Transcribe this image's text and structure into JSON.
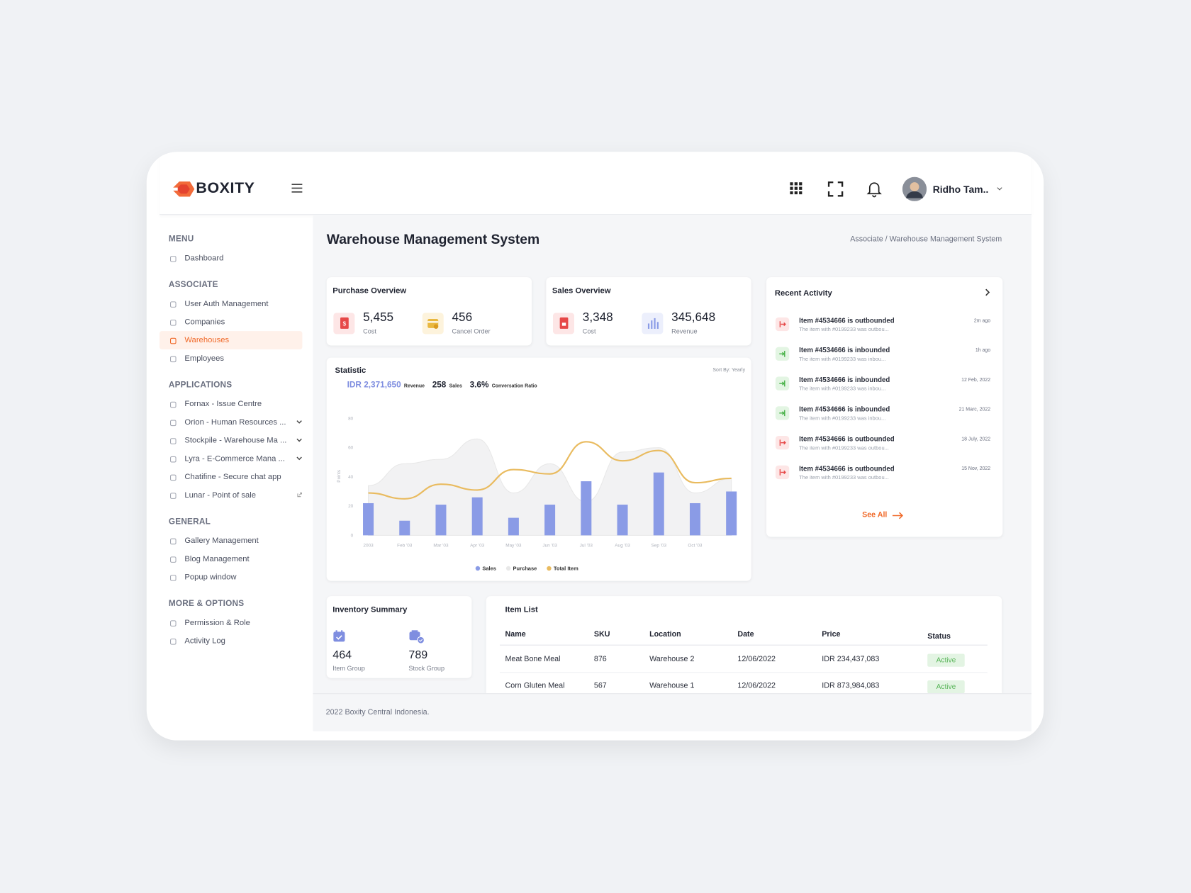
{
  "header": {
    "brand": "BOXITY",
    "user": "Ridho Tam.."
  },
  "sidebar": {
    "sections": [
      {
        "title": "MENU",
        "items": [
          {
            "label": "Dashboard"
          }
        ]
      },
      {
        "title": "ASSOCIATE",
        "items": [
          {
            "label": "User Auth Management"
          },
          {
            "label": "Companies"
          },
          {
            "label": "Warehouses",
            "active": true
          },
          {
            "label": "Employees"
          }
        ]
      },
      {
        "title": "APPLICATIONS",
        "items": [
          {
            "label": "Fornax - Issue Centre"
          },
          {
            "label": "Orion - Human Resources ...",
            "expandable": true
          },
          {
            "label": "Stockpile - Warehouse Ma ...",
            "expandable": true
          },
          {
            "label": "Lyra - E-Commerce Mana ...",
            "expandable": true
          },
          {
            "label": "Chatifine - Secure chat app"
          },
          {
            "label": "Lunar - Point of sale",
            "external": true
          }
        ]
      },
      {
        "title": "GENERAL",
        "items": [
          {
            "label": "Gallery Management"
          },
          {
            "label": "Blog Management"
          },
          {
            "label": "Popup window"
          }
        ]
      },
      {
        "title": "MORE & OPTIONS",
        "items": [
          {
            "label": "Permission & Role"
          },
          {
            "label": "Activity Log"
          }
        ]
      }
    ]
  },
  "page": {
    "title": "Warehouse Management System",
    "breadcrumb": "Associate / Warehouse Management System"
  },
  "purchase_overview": {
    "title": "Purchase Overview",
    "stats": [
      {
        "value": "5,455",
        "label": "Cost"
      },
      {
        "value": "456",
        "label": "Cancel Order"
      }
    ]
  },
  "sales_overview": {
    "title": "Sales Overview",
    "stats": [
      {
        "value": "3,348",
        "label": "Cost"
      },
      {
        "value": "345,648",
        "label": "Revenue"
      }
    ]
  },
  "statistic": {
    "title": "Statistic",
    "sort": "Sort By: Yearly",
    "metrics": [
      {
        "value": "IDR 2,371,650",
        "label": "Revenue"
      },
      {
        "value": "258",
        "label": "Sales"
      },
      {
        "value": "3.6%",
        "label": "Conversation Ratio"
      }
    ]
  },
  "chart_data": {
    "type": "bar",
    "ylabel": "Points",
    "categories": [
      "2003",
      "Feb '03",
      "Mar '03",
      "Apr '03",
      "May '03",
      "Jun '03",
      "Jul '03",
      "Aug '03",
      "Sep '03",
      "Oct '03",
      null
    ],
    "series": [
      {
        "name": "Sales",
        "type": "bar",
        "color": "#8a9be6",
        "values": [
          22,
          10,
          21,
          26,
          12,
          21,
          37,
          21,
          43,
          22,
          30
        ]
      },
      {
        "name": "Purchase",
        "type": "area",
        "color": "#e8e8e8",
        "values": [
          34,
          49,
          52,
          66,
          29,
          49,
          23,
          57,
          60,
          29,
          39
        ]
      },
      {
        "name": "Total Item",
        "type": "line",
        "color": "#e9bb5f",
        "values": [
          29,
          25,
          35,
          31,
          45,
          42,
          64,
          51,
          58,
          36,
          39
        ]
      }
    ],
    "ylim": [
      0,
      80
    ],
    "yticks": [
      0,
      20,
      40,
      60,
      80
    ],
    "grid": false,
    "legend": "bottom"
  },
  "recent_activity": {
    "title": "Recent Activity",
    "see_all": "See All",
    "items": [
      {
        "kind": "out",
        "title": "Item #4534666 is outbounded",
        "desc": "The item with #0199233 was outbou...",
        "time": "2m ago"
      },
      {
        "kind": "in",
        "title": "Item #4534666 is inbounded",
        "desc": "The item with #0199233 was inbou...",
        "time": "1h ago"
      },
      {
        "kind": "in",
        "title": "Item #4534666 is inbounded",
        "desc": "The item with #0199233 was inbou...",
        "time": "12 Feb, 2022"
      },
      {
        "kind": "in",
        "title": "Item #4534666 is inbounded",
        "desc": "The item with #0199233 was inbou...",
        "time": "21 Marc, 2022"
      },
      {
        "kind": "out",
        "title": "Item #4534666 is outbounded",
        "desc": "The item with #0199233 was outbou...",
        "time": "18 July, 2022"
      },
      {
        "kind": "out",
        "title": "Item #4534666 is outbounded",
        "desc": "The item with #0199233 was outbou...",
        "time": "15 Nov, 2022"
      }
    ]
  },
  "inventory_summary": {
    "title": "Inventory Summary",
    "stats": [
      {
        "value": "464",
        "label": "Item Group"
      },
      {
        "value": "789",
        "label": "Stock Group"
      }
    ]
  },
  "item_list": {
    "title": "Item List",
    "columns": [
      "Name",
      "SKU",
      "Location",
      "Date",
      "Price",
      "Status"
    ],
    "rows": [
      [
        "Meat Bone Meal",
        "876",
        "Warehouse 2",
        "12/06/2022",
        "IDR 234,437,083",
        "Active"
      ],
      [
        "Corn Gluten Meal",
        "567",
        "Warehouse 1",
        "12/06/2022",
        "IDR 873,984,083",
        "Active"
      ]
    ]
  },
  "footer": "2022 Boxity Central Indonesia."
}
